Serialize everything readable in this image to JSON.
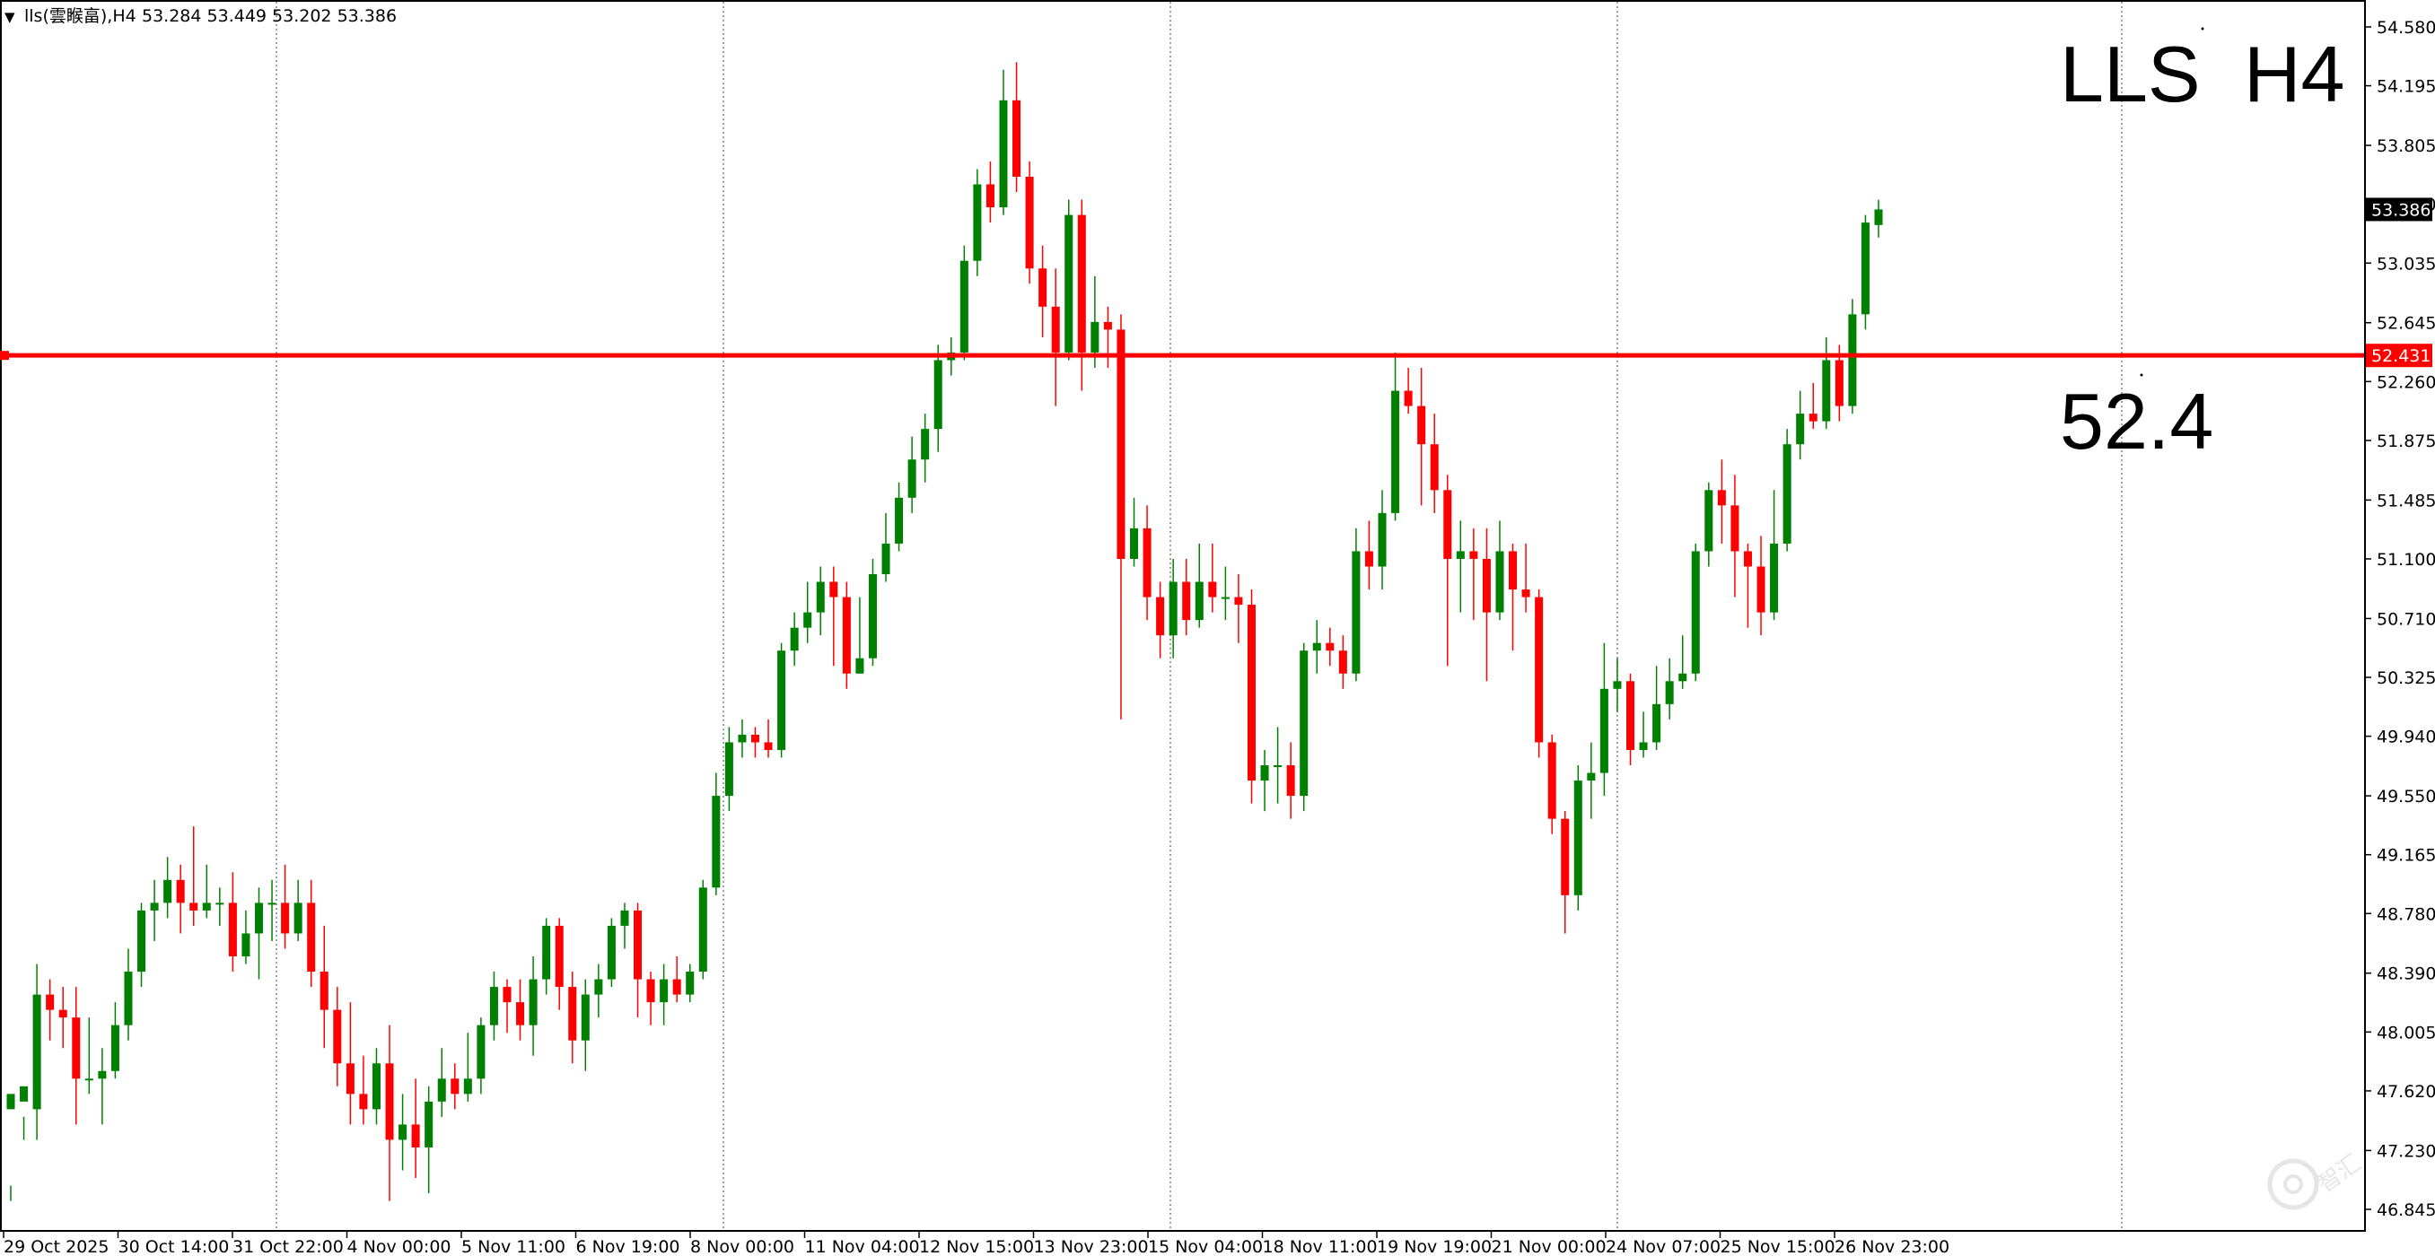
{
  "header": {
    "menu_arrow": "▼",
    "symbol": "lls(",
    "chinese_text": "雲睺畗",
    "timeframe": "),H4",
    "ohlc_readout": "53.284 53.449 53.202 53.386"
  },
  "overlay": {
    "title_symbol": "LLS",
    "title_timeframe": "H4",
    "level_label": "52.4"
  },
  "watermark": "智汇",
  "colors": {
    "bull": "#008000",
    "bear": "#ff0000",
    "level_line": "#ff0000",
    "grid": "#808080",
    "price_tag_bg": "#000000",
    "level_tag_bg": "#ff0000"
  },
  "chart_data": {
    "type": "candlestick",
    "symbol": "lls",
    "timeframe": "H4",
    "y_ticks": [
      "54.580",
      "54.195",
      "53.805",
      "53.420",
      "53.035",
      "52.645",
      "52.260",
      "51.875",
      "51.485",
      "51.100",
      "50.710",
      "50.325",
      "49.940",
      "49.550",
      "49.165",
      "48.780",
      "48.390",
      "48.005",
      "47.620",
      "47.230",
      "46.845"
    ],
    "ylim": [
      46.845,
      54.58
    ],
    "x_labels": [
      "29 Oct 2025",
      "30 Oct 14:00",
      "31 Oct 22:00",
      "4 Nov 00:00",
      "5 Nov 11:00",
      "6 Nov 19:00",
      "8 Nov 00:00",
      "11 Nov 04:00",
      "12 Nov 15:00",
      "13 Nov 23:00",
      "15 Nov 04:00",
      "18 Nov 11:00",
      "19 Nov 19:00",
      "21 Nov 00:00",
      "24 Nov 07:00",
      "25 Nov 15:00",
      "26 Nov 23:00"
    ],
    "vertical_grid_after_labels": [
      "31 Oct 22:00",
      "8 Nov 00:00",
      "15 Nov 04:00",
      "21 Nov 00:00"
    ],
    "current_price": "53.386",
    "level_price": "52.431",
    "candles": [
      [
        47.5,
        47.6,
        47.0,
        46.9
      ],
      [
        47.55,
        47.65,
        47.45,
        47.3
      ],
      [
        47.5,
        48.25,
        48.45,
        47.3
      ],
      [
        48.25,
        48.15,
        48.35,
        47.95
      ],
      [
        48.15,
        48.1,
        48.3,
        47.9
      ],
      [
        48.1,
        47.7,
        48.3,
        47.4
      ],
      [
        47.7,
        47.7,
        48.1,
        47.6
      ],
      [
        47.7,
        47.75,
        47.9,
        47.4
      ],
      [
        47.75,
        48.05,
        48.2,
        47.7
      ],
      [
        48.05,
        48.4,
        48.55,
        47.95
      ],
      [
        48.4,
        48.8,
        48.85,
        48.3
      ],
      [
        48.8,
        48.85,
        49.0,
        48.6
      ],
      [
        48.85,
        49.0,
        49.15,
        48.75
      ],
      [
        49.0,
        48.85,
        49.1,
        48.65
      ],
      [
        48.85,
        48.8,
        49.35,
        48.7
      ],
      [
        48.8,
        48.85,
        49.1,
        48.75
      ],
      [
        48.85,
        48.85,
        48.95,
        48.7
      ],
      [
        48.85,
        48.5,
        49.05,
        48.4
      ],
      [
        48.5,
        48.65,
        48.8,
        48.45
      ],
      [
        48.65,
        48.85,
        48.95,
        48.35
      ],
      [
        48.85,
        48.85,
        49.0,
        48.6
      ],
      [
        48.85,
        48.65,
        49.1,
        48.55
      ],
      [
        48.65,
        48.85,
        49.0,
        48.6
      ],
      [
        48.85,
        48.4,
        49.0,
        48.3
      ],
      [
        48.4,
        48.15,
        48.7,
        47.9
      ],
      [
        48.15,
        47.8,
        48.3,
        47.65
      ],
      [
        47.8,
        47.6,
        48.2,
        47.4
      ],
      [
        47.6,
        47.5,
        47.85,
        47.4
      ],
      [
        47.5,
        47.8,
        47.9,
        47.4
      ],
      [
        47.8,
        47.3,
        48.05,
        46.9
      ],
      [
        47.3,
        47.4,
        47.6,
        47.1
      ],
      [
        47.4,
        47.25,
        47.7,
        47.05
      ],
      [
        47.25,
        47.55,
        47.65,
        46.95
      ],
      [
        47.55,
        47.7,
        47.9,
        47.45
      ],
      [
        47.7,
        47.6,
        47.8,
        47.5
      ],
      [
        47.6,
        47.7,
        48.0,
        47.55
      ],
      [
        47.7,
        48.05,
        48.1,
        47.6
      ],
      [
        48.05,
        48.3,
        48.4,
        47.95
      ],
      [
        48.3,
        48.2,
        48.35,
        48.0
      ],
      [
        48.2,
        48.05,
        48.35,
        47.95
      ],
      [
        48.05,
        48.35,
        48.5,
        47.85
      ],
      [
        48.35,
        48.7,
        48.75,
        48.25
      ],
      [
        48.7,
        48.3,
        48.75,
        48.15
      ],
      [
        48.3,
        47.95,
        48.4,
        47.8
      ],
      [
        47.95,
        48.25,
        48.35,
        47.75
      ],
      [
        48.25,
        48.35,
        48.45,
        48.1
      ],
      [
        48.35,
        48.7,
        48.75,
        48.3
      ],
      [
        48.7,
        48.8,
        48.85,
        48.55
      ],
      [
        48.8,
        48.35,
        48.85,
        48.1
      ],
      [
        48.35,
        48.2,
        48.4,
        48.05
      ],
      [
        48.2,
        48.35,
        48.45,
        48.05
      ],
      [
        48.35,
        48.25,
        48.5,
        48.2
      ],
      [
        48.25,
        48.4,
        48.45,
        48.2
      ],
      [
        48.4,
        48.95,
        49.0,
        48.35
      ],
      [
        48.95,
        49.55,
        49.7,
        48.9
      ],
      [
        49.55,
        49.9,
        50.0,
        49.45
      ],
      [
        49.9,
        49.95,
        50.05,
        49.8
      ],
      [
        49.95,
        49.9,
        50.0,
        49.8
      ],
      [
        49.9,
        49.85,
        50.05,
        49.8
      ],
      [
        49.85,
        50.5,
        50.55,
        49.8
      ],
      [
        50.5,
        50.65,
        50.75,
        50.4
      ],
      [
        50.65,
        50.75,
        50.95,
        50.55
      ],
      [
        50.75,
        50.95,
        51.05,
        50.6
      ],
      [
        50.95,
        50.85,
        51.05,
        50.4
      ],
      [
        50.85,
        50.35,
        50.95,
        50.25
      ],
      [
        50.35,
        50.45,
        50.85,
        50.35
      ],
      [
        50.45,
        51.0,
        51.1,
        50.4
      ],
      [
        51.0,
        51.2,
        51.4,
        50.95
      ],
      [
        51.2,
        51.5,
        51.6,
        51.15
      ],
      [
        51.5,
        51.75,
        51.9,
        51.4
      ],
      [
        51.75,
        51.95,
        52.05,
        51.6
      ],
      [
        51.95,
        52.4,
        52.5,
        51.8
      ],
      [
        52.4,
        52.45,
        52.55,
        52.3
      ],
      [
        52.45,
        53.05,
        53.15,
        52.4
      ],
      [
        53.05,
        53.55,
        53.65,
        52.95
      ],
      [
        53.55,
        53.4,
        53.7,
        53.3
      ],
      [
        53.4,
        54.1,
        54.3,
        53.35
      ],
      [
        54.1,
        53.6,
        54.35,
        53.5
      ],
      [
        53.6,
        53.0,
        53.7,
        52.9
      ],
      [
        53.0,
        52.75,
        53.15,
        52.55
      ],
      [
        52.75,
        52.45,
        53.0,
        52.1
      ],
      [
        52.45,
        53.35,
        53.45,
        52.4
      ],
      [
        53.35,
        52.45,
        53.45,
        52.2
      ],
      [
        52.45,
        52.65,
        52.95,
        52.35
      ],
      [
        52.65,
        52.6,
        52.75,
        52.35
      ],
      [
        52.6,
        51.1,
        52.7,
        50.05
      ],
      [
        51.1,
        51.3,
        51.5,
        51.05
      ],
      [
        51.3,
        50.85,
        51.45,
        50.7
      ],
      [
        50.85,
        50.6,
        50.95,
        50.45
      ],
      [
        50.6,
        50.95,
        51.1,
        50.45
      ],
      [
        50.95,
        50.7,
        51.1,
        50.6
      ],
      [
        50.7,
        50.95,
        51.2,
        50.65
      ],
      [
        50.95,
        50.85,
        51.2,
        50.75
      ],
      [
        50.85,
        50.85,
        51.05,
        50.7
      ],
      [
        50.85,
        50.8,
        51.0,
        50.55
      ],
      [
        50.8,
        49.65,
        50.9,
        49.5
      ],
      [
        49.65,
        49.75,
        49.85,
        49.45
      ],
      [
        49.75,
        49.75,
        50.0,
        49.5
      ],
      [
        49.75,
        49.55,
        49.9,
        49.4
      ],
      [
        49.55,
        50.5,
        50.55,
        49.45
      ],
      [
        50.5,
        50.55,
        50.7,
        50.35
      ],
      [
        50.55,
        50.5,
        50.65,
        50.4
      ],
      [
        50.5,
        50.35,
        50.6,
        50.25
      ],
      [
        50.35,
        51.15,
        51.3,
        50.3
      ],
      [
        51.15,
        51.05,
        51.35,
        50.9
      ],
      [
        51.05,
        51.4,
        51.55,
        50.9
      ],
      [
        51.4,
        52.2,
        52.45,
        51.35
      ],
      [
        52.2,
        52.1,
        52.35,
        52.05
      ],
      [
        52.1,
        51.85,
        52.35,
        51.45
      ],
      [
        51.85,
        51.55,
        52.05,
        51.4
      ],
      [
        51.55,
        51.1,
        51.65,
        50.4
      ],
      [
        51.1,
        51.15,
        51.35,
        50.75
      ],
      [
        51.15,
        51.1,
        51.3,
        50.7
      ],
      [
        51.1,
        50.75,
        51.3,
        50.3
      ],
      [
        50.75,
        51.15,
        51.35,
        50.7
      ],
      [
        51.15,
        50.9,
        51.2,
        50.5
      ],
      [
        50.9,
        50.85,
        51.2,
        50.75
      ],
      [
        50.85,
        49.9,
        50.9,
        49.8
      ],
      [
        49.9,
        49.4,
        49.95,
        49.3
      ],
      [
        49.4,
        48.9,
        49.45,
        48.65
      ],
      [
        48.9,
        49.65,
        49.75,
        48.8
      ],
      [
        49.65,
        49.7,
        49.9,
        49.4
      ],
      [
        49.7,
        50.25,
        50.55,
        49.55
      ],
      [
        50.25,
        50.3,
        50.45,
        50.1
      ],
      [
        50.3,
        49.85,
        50.35,
        49.75
      ],
      [
        49.85,
        49.9,
        50.1,
        49.8
      ],
      [
        49.9,
        50.15,
        50.4,
        49.85
      ],
      [
        50.15,
        50.3,
        50.45,
        50.05
      ],
      [
        50.3,
        50.35,
        50.6,
        50.25
      ],
      [
        50.35,
        51.15,
        51.2,
        50.3
      ],
      [
        51.15,
        51.55,
        51.6,
        51.05
      ],
      [
        51.55,
        51.45,
        51.75,
        51.2
      ],
      [
        51.45,
        51.15,
        51.65,
        50.85
      ],
      [
        51.15,
        51.05,
        51.2,
        50.65
      ],
      [
        51.05,
        50.75,
        51.25,
        50.6
      ],
      [
        50.75,
        51.2,
        51.55,
        50.7
      ],
      [
        51.2,
        51.85,
        51.95,
        51.15
      ],
      [
        51.85,
        52.05,
        52.2,
        51.75
      ],
      [
        52.05,
        52.0,
        52.25,
        51.95
      ],
      [
        52.0,
        52.4,
        52.55,
        51.95
      ],
      [
        52.4,
        52.1,
        52.5,
        52.0
      ],
      [
        52.1,
        52.7,
        52.8,
        52.05
      ],
      [
        52.7,
        53.3,
        53.35,
        52.6
      ],
      [
        53.284,
        53.386,
        53.449,
        53.202
      ]
    ]
  }
}
